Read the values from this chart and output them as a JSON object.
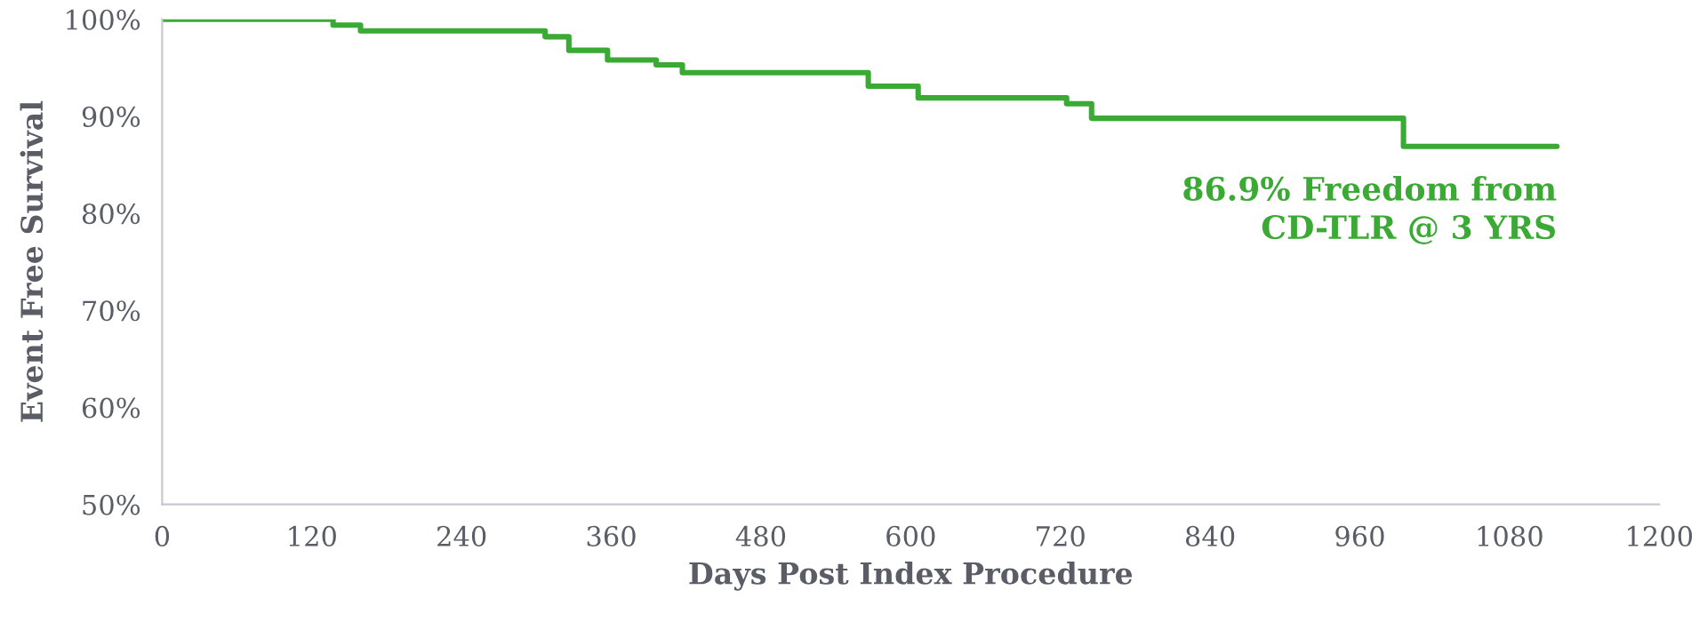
{
  "chart_data": {
    "type": "step",
    "xlabel": "Days Post Index Procedure",
    "ylabel": "Event Free Survival",
    "x": [
      0,
      137,
      159,
      307,
      326,
      357,
      396,
      417,
      566,
      606,
      725,
      745,
      995,
      1118
    ],
    "series": [
      {
        "color": "#3aaa35",
        "values": [
          100,
          99.4,
          98.8,
          98.2,
          96.8,
          95.8,
          95.3,
          94.5,
          93.1,
          91.9,
          91.3,
          89.8,
          86.9,
          86.9
        ]
      }
    ],
    "xlim": [
      0,
      1200
    ],
    "xticks": [
      0,
      120,
      240,
      360,
      480,
      600,
      720,
      840,
      960,
      1080,
      1200
    ],
    "ylim": [
      50,
      100
    ],
    "yticks": [
      {
        "value": 50,
        "label": "50%"
      },
      {
        "value": 60,
        "label": "60%"
      },
      {
        "value": 70,
        "label": "70%"
      },
      {
        "value": 80,
        "label": "80%"
      },
      {
        "value": 90,
        "label": "90%"
      },
      {
        "value": 100,
        "label": "100%"
      }
    ],
    "annotations": [
      {
        "text": "86.9% Freedom from\nCD-TLR @ 3 YRS",
        "x": 1118,
        "y": 86.9
      }
    ],
    "grid": false,
    "legend": false
  }
}
